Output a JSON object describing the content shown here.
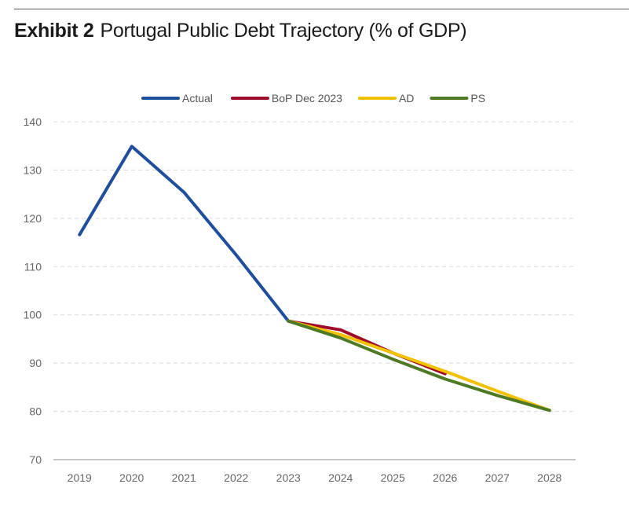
{
  "header": {
    "exhibit": "Exhibit 2",
    "title": "Portugal Public Debt Trajectory (% of GDP)"
  },
  "chart_data": {
    "type": "line",
    "title": "Portugal Public Debt Trajectory (% of GDP)",
    "xlabel": "",
    "ylabel": "",
    "categories": [
      "2019",
      "2020",
      "2021",
      "2022",
      "2023",
      "2024",
      "2025",
      "2026",
      "2027",
      "2028"
    ],
    "ylim": [
      70,
      140
    ],
    "yticks": [
      70,
      80,
      90,
      100,
      110,
      120,
      130,
      140
    ],
    "grid": "horizontal dashed",
    "legend_position": "top-center",
    "series": [
      {
        "name": "Actual",
        "color": "#1f4e9c",
        "values": [
          116.6,
          134.9,
          125.4,
          112.4,
          98.7,
          null,
          null,
          null,
          null,
          null
        ]
      },
      {
        "name": "BoP Dec 2023",
        "color": "#9e0b2b",
        "values": [
          null,
          null,
          null,
          null,
          98.7,
          96.9,
          92.1,
          87.8,
          null,
          null
        ]
      },
      {
        "name": "AD",
        "color": "#f2c200",
        "values": [
          null,
          null,
          null,
          null,
          98.7,
          95.9,
          92.1,
          88.3,
          84.2,
          80.2
        ]
      },
      {
        "name": "PS",
        "color": "#4e7a25",
        "values": [
          null,
          null,
          null,
          null,
          98.7,
          95.2,
          90.8,
          86.7,
          83.3,
          80.2
        ]
      }
    ]
  }
}
